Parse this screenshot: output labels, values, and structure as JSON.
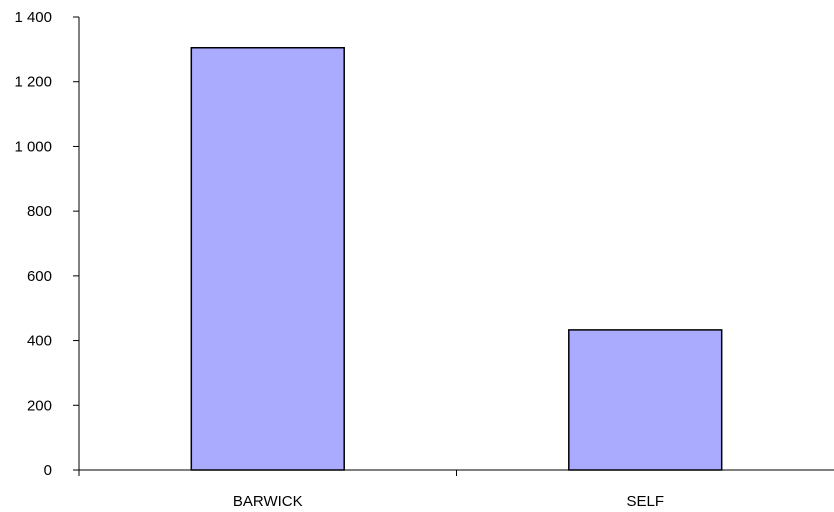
{
  "chart_data": {
    "type": "bar",
    "categories": [
      "BARWICK",
      "SELF"
    ],
    "series": [
      {
        "values": [
          1305,
          433
        ]
      }
    ],
    "title": "",
    "xlabel": "",
    "ylabel": "",
    "ylim": [
      0,
      1400
    ],
    "yticks": [
      0,
      200,
      400,
      600,
      800,
      1000,
      1200,
      1400
    ],
    "ytick_labels": [
      "0",
      "200",
      "400",
      "600",
      "800",
      "1 000",
      "1 200",
      "1 400"
    ],
    "grid": false,
    "legend": "none",
    "bar_color": "#aaaaff",
    "bar_edge_color": "#000000"
  }
}
